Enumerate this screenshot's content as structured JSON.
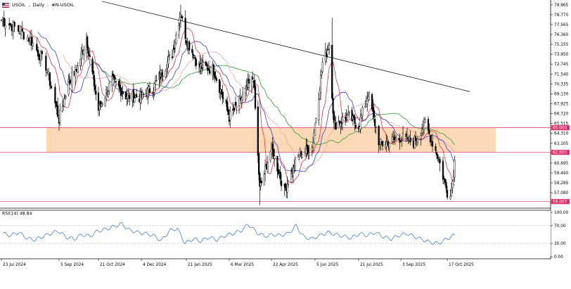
{
  "header": {
    "symbol": "USOIL",
    "timeframe": "Daily",
    "instrument": "#N-USOIL"
  },
  "colors": {
    "bull_candle": "#000000",
    "bear_candle": "#ffffff",
    "ma_fast": "#e8333f",
    "ma_mid": "#3a3ad8",
    "ma_slow_light": "#f4a6a6",
    "ma_long": "#2e9a2e",
    "zone_fill": "#fcd9b6",
    "level_line": "#e0306a",
    "trendline": "#000000"
  },
  "chart_data": [
    {
      "type": "candlestick",
      "title": "",
      "price_axis_ticks": [
        "79.965",
        "78.770",
        "77.565",
        "76.360",
        "75.155",
        "73.950",
        "72.745",
        "71.540",
        "70.335",
        "69.130",
        "67.925",
        "66.720",
        "65.515",
        "64.310",
        "63.105",
        "61.900",
        "60.695",
        "59.490",
        "58.285",
        "57.080",
        "55.875"
      ],
      "price_range": [
        55.55,
        80.3
      ],
      "date_axis_ticks": [
        "23 Jul 2024",
        "5 Sep 2024",
        "21 Oct 2024",
        "4 Dec 2024",
        "21 Jan 2025",
        "6 Mar 2025",
        "22 Apr 2025",
        "5 Jun 2025",
        "21 Jul 2025",
        "3 Sep 2025",
        "17 Oct 2025"
      ],
      "level_labels": [
        {
          "label": "65.000",
          "value": 65.0
        },
        {
          "label": "62.000",
          "value": 62.0
        },
        {
          "label": "56.007",
          "value": 56.007
        }
      ],
      "supply_zone": {
        "from_date": "5 Sep 2024",
        "to_date": "late Oct 2025",
        "low": 62.0,
        "high": 65.0
      },
      "trendline": {
        "start_date": "Aug 2024",
        "start_price": 80.4,
        "end_date": "late Oct 2025",
        "end_price": 69.4
      },
      "closes": [
        {
          "date": "23 Jul 2024",
          "value": 78.1
        },
        {
          "date": "2 Aug 2024",
          "value": 77.2
        },
        {
          "date": "14 Aug 2024",
          "value": 75.8
        },
        {
          "date": "26 Aug 2024",
          "value": 72.5
        },
        {
          "date": "5 Sep 2024",
          "value": 66.0
        },
        {
          "date": "16 Sep 2024",
          "value": 70.5
        },
        {
          "date": "27 Sep 2024",
          "value": 72.4
        },
        {
          "date": "7 Oct 2024",
          "value": 75.9
        },
        {
          "date": "21 Oct 2024",
          "value": 67.2
        },
        {
          "date": "4 Nov 2024",
          "value": 70.8
        },
        {
          "date": "18 Nov 2024",
          "value": 68.9
        },
        {
          "date": "4 Dec 2024",
          "value": 68.7
        },
        {
          "date": "18 Dec 2024",
          "value": 70.1
        },
        {
          "date": "6 Jan 2025",
          "value": 74.0
        },
        {
          "date": "15 Jan 2025",
          "value": 79.2
        },
        {
          "date": "21 Jan 2025",
          "value": 75.8
        },
        {
          "date": "3 Feb 2025",
          "value": 72.5
        },
        {
          "date": "18 Feb 2025",
          "value": 72.1
        },
        {
          "date": "6 Mar 2025",
          "value": 66.3
        },
        {
          "date": "21 Mar 2025",
          "value": 68.8
        },
        {
          "date": "2 Apr 2025",
          "value": 71.2
        },
        {
          "date": "9 Apr 2025",
          "value": 57.5
        },
        {
          "date": "22 Apr 2025",
          "value": 62.5
        },
        {
          "date": "5 May 2025",
          "value": 57.4
        },
        {
          "date": "20 May 2025",
          "value": 61.8
        },
        {
          "date": "2 Jun 2025",
          "value": 62.6
        },
        {
          "date": "13 Jun 2025",
          "value": 72.9
        },
        {
          "date": "20 Jun 2025",
          "value": 75.2
        },
        {
          "date": "25 Jun 2025",
          "value": 65.3
        },
        {
          "date": "10 Jul 2025",
          "value": 66.4
        },
        {
          "date": "21 Jul 2025",
          "value": 65.2
        },
        {
          "date": "31 Jul 2025",
          "value": 69.2
        },
        {
          "date": "12 Aug 2025",
          "value": 62.9
        },
        {
          "date": "3 Sep 2025",
          "value": 63.8
        },
        {
          "date": "15 Sep 2025",
          "value": 63.2
        },
        {
          "date": "26 Sep 2025",
          "value": 65.5
        },
        {
          "date": "8 Oct 2025",
          "value": 61.6
        },
        {
          "date": "17 Oct 2025",
          "value": 57.1
        },
        {
          "date": "21 Oct 2025",
          "value": 57.4
        },
        {
          "date": "24 Oct 2025",
          "value": 60.9
        }
      ]
    },
    {
      "type": "line",
      "indicator": "RSI(14)",
      "last_value_label": "48.84",
      "ylim": [
        0,
        100
      ],
      "axis_ticks": [
        "100.00",
        "70.00",
        "30.00",
        "0.00"
      ],
      "values": [
        52,
        48,
        55,
        42,
        38,
        45,
        52,
        58,
        44,
        40,
        50,
        46,
        58,
        62,
        68,
        74,
        60,
        55,
        52,
        48,
        36,
        58,
        64,
        30,
        40,
        35,
        44,
        38,
        47,
        52,
        58,
        73,
        55,
        46,
        50,
        48,
        52,
        70,
        44,
        40,
        48,
        55,
        50,
        46,
        42,
        52,
        48,
        55,
        45,
        40,
        48,
        52,
        45,
        38,
        32,
        30,
        40,
        48.84
      ]
    }
  ]
}
